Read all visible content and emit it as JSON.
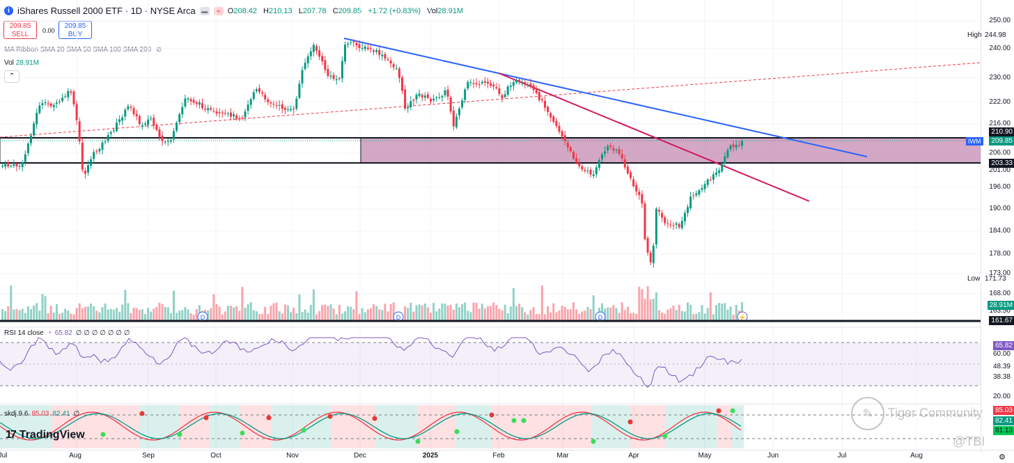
{
  "header": {
    "title": "iShares Russell 2000 ETF · 1D · NYSE Arca",
    "ohlc": {
      "open_label": "O",
      "open": "208.42",
      "high_label": "H",
      "high": "210.13",
      "low_label": "L",
      "low": "207.78",
      "close_label": "C",
      "close": "209.85",
      "change": "+1.72 (+0.83%)",
      "vol_label": "Vol",
      "vol": "28.91M"
    }
  },
  "trade": {
    "sell_price": "209.85",
    "sell_label": "SELL",
    "spread": "0.00",
    "buy_price": "209.85",
    "buy_label": "BUY"
  },
  "indicators": {
    "ma_ribbon": "MA Ribbon SMA 20 SMA 50 SMA 100 SMA 200",
    "vol_label": "Vol",
    "vol_value": "28.91M",
    "rsi_label": "RSI 14 close",
    "rsi_value": "65.82",
    "rsi_extra": "∅ ∅ ∅ ∅ ∅ ∅ ∅",
    "skdj_label": "skdj 9 6",
    "skdj_k": "85.03",
    "skdj_d": "82.41",
    "skdj_extra": "∅"
  },
  "price_axis": {
    "ticks": [
      "250.00",
      "240.00",
      "230.00",
      "222.00",
      "216.00",
      "206.00",
      "201.00",
      "196.00",
      "190.00",
      "184.00",
      "178.00",
      "173.00",
      "168.00",
      "163.50"
    ],
    "high_label": "High",
    "high_value": "244.98",
    "low_label": "Low",
    "low_value": "171.73",
    "level_upper": "210.90",
    "level_lower": "203.33",
    "last_price": "209.85",
    "symbol": "IWM",
    "volume_tag": "28.91M",
    "support": "161.67"
  },
  "rsi_axis": {
    "value": "65.82",
    "ticks": [
      "60.00",
      "48.39",
      "38.38",
      "20.00"
    ]
  },
  "skdj_axis": {
    "k": "85.03",
    "d": "82.41",
    "third": "81.13"
  },
  "time_axis": [
    "Jul",
    "Aug",
    "Sep",
    "Oct",
    "Nov",
    "Dec",
    "2025",
    "Feb",
    "Mar",
    "Apr",
    "May",
    "Jun",
    "Jul",
    "Aug"
  ],
  "branding": {
    "logo": "TradingView",
    "community": "Tiger Community",
    "handle": "@TBI"
  },
  "colors": {
    "up": "#089981",
    "down": "#f23645",
    "zone": "#c48bb0",
    "blue_trend": "#2962ff",
    "red_trend": "#d2195e",
    "rsi": "#7e57c2",
    "brand": "#2962ff"
  }
}
